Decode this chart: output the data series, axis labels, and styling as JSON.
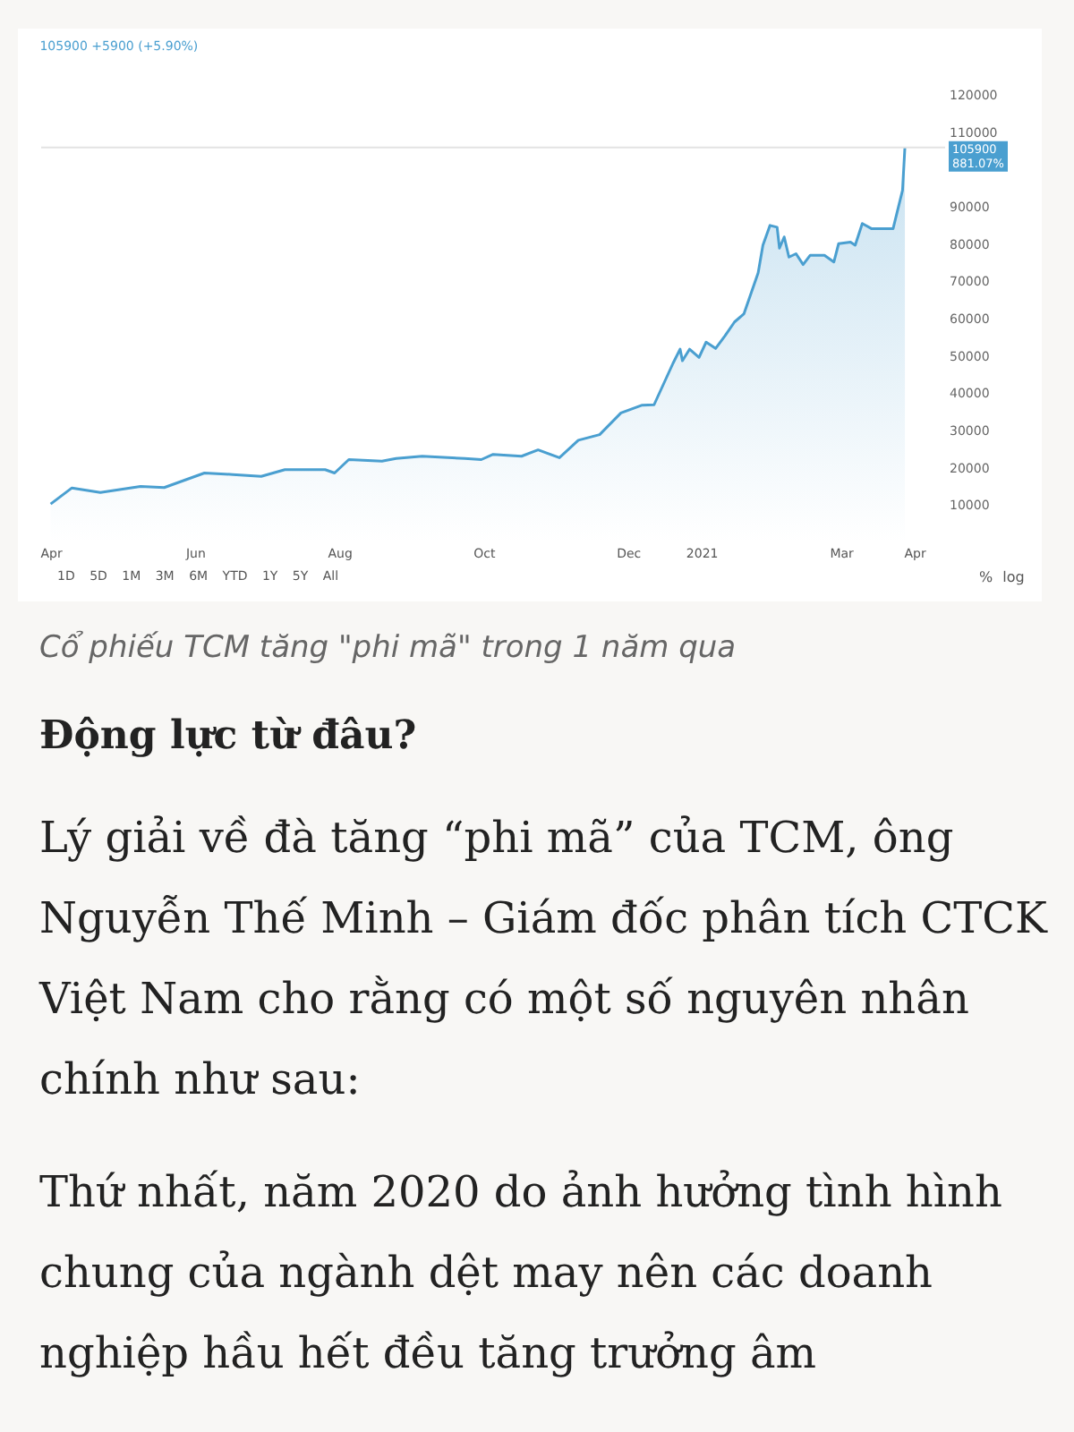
{
  "chart_data": {
    "type": "area",
    "title": "105900 +5900 (+5.90%)",
    "x": [
      "2020-04-01",
      "2020-04-10",
      "2020-04-22",
      "2020-05-09",
      "2020-05-19",
      "2020-06-05",
      "2020-06-17",
      "2020-06-29",
      "2020-07-09",
      "2020-07-26",
      "2020-07-30",
      "2020-08-05",
      "2020-08-19",
      "2020-08-25",
      "2020-09-05",
      "2020-09-23",
      "2020-09-30",
      "2020-10-05",
      "2020-10-17",
      "2020-10-24",
      "2020-11-02",
      "2020-11-10",
      "2020-11-19",
      "2020-11-28",
      "2020-12-07",
      "2020-12-12",
      "2020-12-20",
      "2020-12-23",
      "2020-12-24",
      "2020-12-27",
      "2020-12-31",
      "2021-01-03",
      "2021-01-07",
      "2021-01-11",
      "2021-01-15",
      "2021-01-19",
      "2021-01-25",
      "2021-01-27",
      "2021-01-30",
      "2021-02-02",
      "2021-02-03",
      "2021-02-05",
      "2021-02-07",
      "2021-02-10",
      "2021-02-13",
      "2021-02-16",
      "2021-02-22",
      "2021-02-26",
      "2021-02-28",
      "2021-03-05",
      "2021-03-07",
      "2021-03-10",
      "2021-03-14",
      "2021-03-23",
      "2021-03-27",
      "2021-03-28"
    ],
    "series": [
      {
        "color": "#4a9fd0",
        "values": [
          10300,
          14600,
          13400,
          15000,
          14700,
          18600,
          18200,
          17700,
          19500,
          19500,
          18600,
          22200,
          21800,
          22500,
          23100,
          22500,
          22200,
          23600,
          23100,
          24800,
          22700,
          27400,
          28900,
          34700,
          36800,
          36900,
          48000,
          51800,
          48700,
          51800,
          49600,
          53700,
          52000,
          55400,
          59100,
          61300,
          72300,
          79700,
          85000,
          84500,
          78900,
          81900,
          76500,
          77400,
          74500,
          77000,
          77000,
          75200,
          80100,
          80500,
          79700,
          85500,
          84100,
          84100,
          94400,
          105900
        ]
      }
    ],
    "xlim": [
      "2020-03-28",
      "2021-04-14"
    ],
    "xticks": [
      {
        "value": "2020-04-01",
        "label": "Apr"
      },
      {
        "value": "2020-06-01",
        "label": "Jun"
      },
      {
        "value": "2020-08-01",
        "label": "Aug"
      },
      {
        "value": "2020-10-01",
        "label": "Oct"
      },
      {
        "value": "2020-12-01",
        "label": "Dec"
      },
      {
        "value": "2021-01-01",
        "label": "2021"
      },
      {
        "value": "2021-03-01",
        "label": "Mar"
      },
      {
        "value": "2021-04-01",
        "label": "Apr"
      }
    ],
    "ylim": [
      0,
      120000
    ],
    "yticks": [
      10000,
      20000,
      30000,
      40000,
      50000,
      60000,
      70000,
      80000,
      90000,
      110000,
      120000
    ],
    "grid": false,
    "ref_lines": [
      {
        "axis": "y",
        "value": 105900,
        "label": "105900",
        "color": "#e3e3e3"
      }
    ],
    "annotations": [
      "881.07%",
      "1D 5D 1M 3M 6M YTD 1Y 5Y All",
      "% log",
      "Cổ phiếu TCM tăng \"phi mã\" trong 1 năm qua",
      "Động lực từ đâu?",
      "Lý giải về đà tăng “phi mã” của TCM, ông Nguyễn Thế Minh – Giám đốc phân tích CTCK Việt Nam cho rằng có một số nguyên nhân chính như sau:",
      "Thứ nhất, năm 2020 do ảnh hưởng tình hình chung của ngành dệt may nên các doanh nghiệp hầu hết đều tăng trưởng âm"
    ]
  }
}
